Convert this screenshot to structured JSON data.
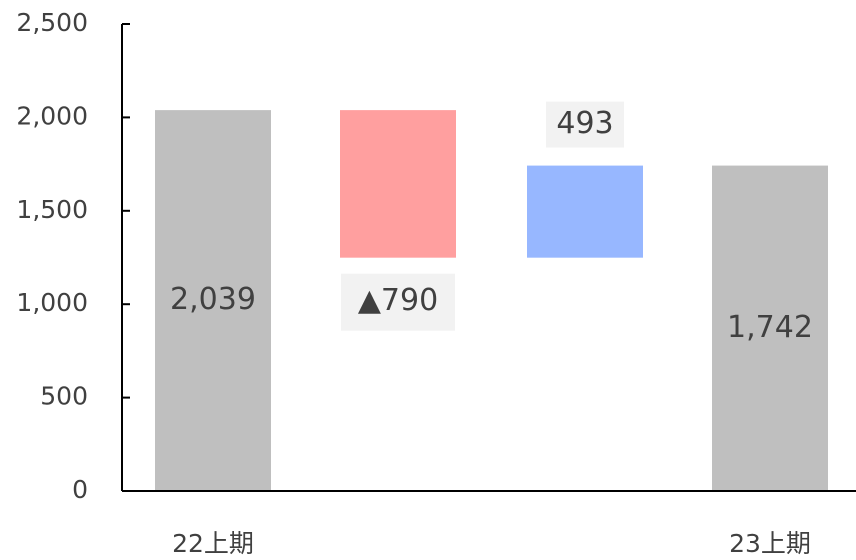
{
  "chart_data": {
    "type": "waterfall",
    "categories": [
      "22上期",
      null,
      null,
      "23上期"
    ],
    "values": [
      2039,
      -790,
      493,
      1742
    ],
    "value_labels": [
      "2,039",
      "▲790",
      "493",
      "1,742"
    ],
    "colors": [
      "#bfbfbf",
      "#ff9f9f",
      "#97b7ff",
      "#bfbfbf"
    ],
    "ylim": [
      0,
      2500
    ],
    "yticks": [
      0,
      500,
      {
        "value": 1000,
        "label": "1,000"
      },
      {
        "value": 1500,
        "label": "1,500"
      },
      {
        "value": 2000,
        "label": "2,000"
      },
      {
        "value": 2500,
        "label": "2,500"
      }
    ]
  }
}
